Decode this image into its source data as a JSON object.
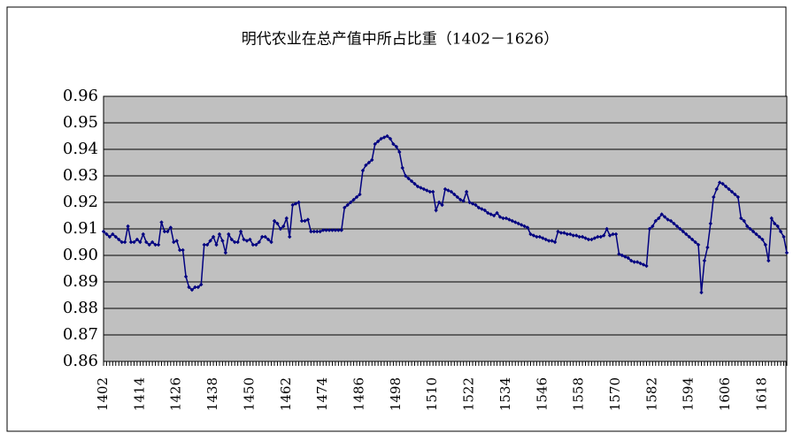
{
  "chart_data": {
    "type": "line",
    "title": "明代农业在总产值中所占比重（1402－1626）",
    "x": [
      1402,
      1403,
      1404,
      1405,
      1406,
      1407,
      1408,
      1409,
      1410,
      1411,
      1412,
      1413,
      1414,
      1415,
      1416,
      1417,
      1418,
      1419,
      1420,
      1421,
      1422,
      1423,
      1424,
      1425,
      1426,
      1427,
      1428,
      1429,
      1430,
      1431,
      1432,
      1433,
      1434,
      1435,
      1436,
      1437,
      1438,
      1439,
      1440,
      1441,
      1442,
      1443,
      1444,
      1445,
      1446,
      1447,
      1448,
      1449,
      1450,
      1451,
      1452,
      1453,
      1454,
      1455,
      1456,
      1457,
      1458,
      1459,
      1460,
      1461,
      1462,
      1463,
      1464,
      1465,
      1466,
      1467,
      1468,
      1469,
      1470,
      1471,
      1472,
      1473,
      1474,
      1475,
      1476,
      1477,
      1478,
      1479,
      1480,
      1481,
      1482,
      1483,
      1484,
      1485,
      1486,
      1487,
      1488,
      1489,
      1490,
      1491,
      1492,
      1493,
      1494,
      1495,
      1496,
      1497,
      1498,
      1499,
      1500,
      1501,
      1502,
      1503,
      1504,
      1505,
      1506,
      1507,
      1508,
      1509,
      1510,
      1511,
      1512,
      1513,
      1514,
      1515,
      1516,
      1517,
      1518,
      1519,
      1520,
      1521,
      1522,
      1523,
      1524,
      1525,
      1526,
      1527,
      1528,
      1529,
      1530,
      1531,
      1532,
      1533,
      1534,
      1535,
      1536,
      1537,
      1538,
      1539,
      1540,
      1541,
      1542,
      1543,
      1544,
      1545,
      1546,
      1547,
      1548,
      1549,
      1550,
      1551,
      1552,
      1553,
      1554,
      1555,
      1556,
      1557,
      1558,
      1559,
      1560,
      1561,
      1562,
      1563,
      1564,
      1565,
      1566,
      1567,
      1568,
      1569,
      1570,
      1571,
      1572,
      1573,
      1574,
      1575,
      1576,
      1577,
      1578,
      1579,
      1580,
      1581,
      1582,
      1583,
      1584,
      1585,
      1586,
      1587,
      1588,
      1589,
      1590,
      1591,
      1592,
      1593,
      1594,
      1595,
      1596,
      1597,
      1598,
      1599,
      1600,
      1601,
      1602,
      1603,
      1604,
      1605,
      1606,
      1607,
      1608,
      1609,
      1610,
      1611,
      1612,
      1613,
      1614,
      1615,
      1616,
      1617,
      1618,
      1619,
      1620,
      1621,
      1622,
      1623,
      1624,
      1625,
      1626
    ],
    "values": [
      0.909,
      0.908,
      0.907,
      0.908,
      0.907,
      0.906,
      0.905,
      0.905,
      0.911,
      0.905,
      0.905,
      0.906,
      0.905,
      0.908,
      0.905,
      0.904,
      0.905,
      0.904,
      0.904,
      0.9125,
      0.909,
      0.909,
      0.9105,
      0.905,
      0.9055,
      0.902,
      0.902,
      0.892,
      0.888,
      0.887,
      0.888,
      0.888,
      0.889,
      0.904,
      0.904,
      0.9055,
      0.907,
      0.904,
      0.908,
      0.9055,
      0.901,
      0.908,
      0.906,
      0.905,
      0.905,
      0.909,
      0.906,
      0.9055,
      0.906,
      0.904,
      0.904,
      0.905,
      0.907,
      0.907,
      0.906,
      0.905,
      0.913,
      0.912,
      0.91,
      0.911,
      0.914,
      0.907,
      0.919,
      0.9195,
      0.92,
      0.913,
      0.913,
      0.9135,
      0.909,
      0.909,
      0.909,
      0.909,
      0.9095,
      0.9095,
      0.9095,
      0.9095,
      0.9095,
      0.9095,
      0.9095,
      0.918,
      0.919,
      0.92,
      0.921,
      0.922,
      0.923,
      0.932,
      0.934,
      0.935,
      0.936,
      0.942,
      0.943,
      0.944,
      0.9445,
      0.945,
      0.944,
      0.942,
      0.941,
      0.939,
      0.933,
      0.93,
      0.929,
      0.928,
      0.927,
      0.926,
      0.9255,
      0.925,
      0.9245,
      0.924,
      0.924,
      0.917,
      0.92,
      0.919,
      0.925,
      0.9245,
      0.924,
      0.923,
      0.922,
      0.921,
      0.9205,
      0.924,
      0.92,
      0.9195,
      0.919,
      0.918,
      0.9175,
      0.917,
      0.916,
      0.9155,
      0.915,
      0.916,
      0.9145,
      0.914,
      0.914,
      0.9135,
      0.913,
      0.9125,
      0.912,
      0.9115,
      0.911,
      0.9105,
      0.908,
      0.9075,
      0.907,
      0.907,
      0.9065,
      0.906,
      0.9055,
      0.9055,
      0.905,
      0.909,
      0.9085,
      0.9085,
      0.908,
      0.908,
      0.9075,
      0.9075,
      0.907,
      0.907,
      0.9065,
      0.906,
      0.906,
      0.9065,
      0.907,
      0.907,
      0.9075,
      0.91,
      0.9075,
      0.908,
      0.908,
      0.9005,
      0.9,
      0.8995,
      0.899,
      0.898,
      0.8975,
      0.8975,
      0.897,
      0.8965,
      0.896,
      0.91,
      0.911,
      0.913,
      0.914,
      0.9155,
      0.9145,
      0.9135,
      0.913,
      0.912,
      0.911,
      0.91,
      0.909,
      0.908,
      0.907,
      0.906,
      0.905,
      0.904,
      0.886,
      0.898,
      0.903,
      0.912,
      0.922,
      0.925,
      0.9275,
      0.927,
      0.926,
      0.925,
      0.924,
      0.923,
      0.922,
      0.914,
      0.913,
      0.911,
      0.91,
      0.909,
      0.908,
      0.907,
      0.906,
      0.904,
      0.898,
      0.914,
      0.912,
      0.911,
      0.909,
      0.907,
      0.901
    ],
    "color": "#000080",
    "xlim": [
      1402,
      1626
    ],
    "xticks": [
      1402,
      1414,
      1426,
      1438,
      1450,
      1462,
      1474,
      1486,
      1498,
      1510,
      1522,
      1534,
      1546,
      1558,
      1570,
      1582,
      1594,
      1606,
      1618
    ],
    "ylim": [
      0.86,
      0.96
    ],
    "yticks": [
      {
        "value": 0.86,
        "label": "0.86"
      },
      {
        "value": 0.87,
        "label": "0.87"
      },
      {
        "value": 0.88,
        "label": "0.88"
      },
      {
        "value": 0.89,
        "label": "0.89"
      },
      {
        "value": 0.9,
        "label": "0.90"
      },
      {
        "value": 0.91,
        "label": "0.91"
      },
      {
        "value": 0.92,
        "label": "0.92"
      },
      {
        "value": 0.93,
        "label": "0.93"
      },
      {
        "value": 0.94,
        "label": "0.94"
      },
      {
        "value": 0.95,
        "label": "0.95"
      },
      {
        "value": 0.96,
        "label": "0.96"
      }
    ],
    "grid": true
  }
}
